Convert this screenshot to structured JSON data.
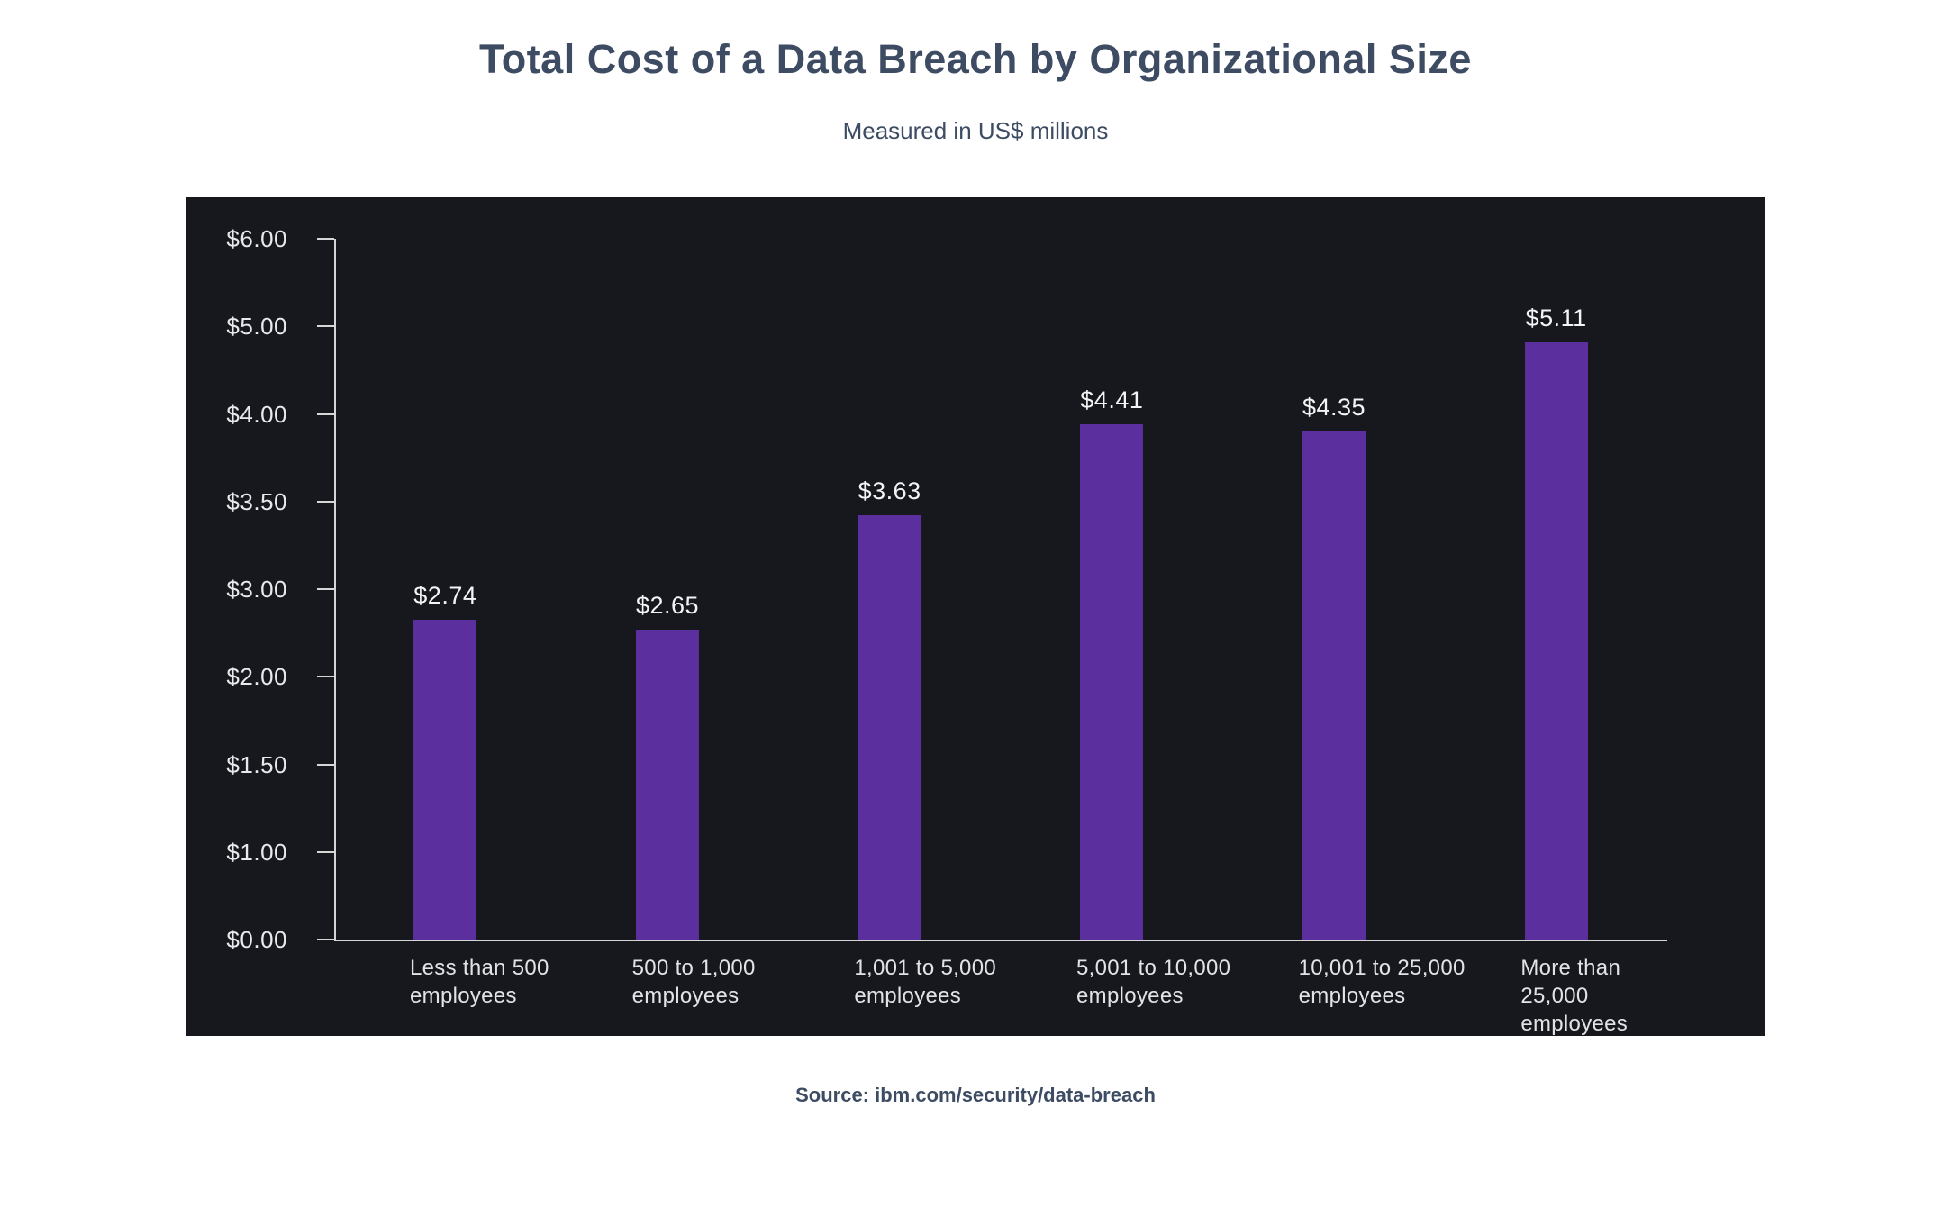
{
  "header": {
    "title": "Total Cost of a Data Breach by Organizational Size",
    "subtitle": "Measured in US$ millions"
  },
  "footer": {
    "source": "Source: ibm.com/security/data-breach"
  },
  "colors": {
    "page_background": "#ffffff",
    "panel_background": "#16181d",
    "bar_fill": "#5b2f9e",
    "heading_text": "#3d4c63",
    "axis_line": "#d6d6d6",
    "tick_label_text": "#e9e9ec",
    "value_label_text": "#f4f4f6",
    "category_label_text": "#e3e3e6"
  },
  "chart_data": {
    "type": "bar",
    "title": "Total Cost of a Data Breach by Organizational Size",
    "subtitle": "Measured in US$ millions",
    "source": "Source: ibm.com/security/data-breach",
    "categories": [
      "Less than 500 employees",
      "500 to 1,000 employees",
      "1,001 to 5,000 employees",
      "5,001 to 10,000 employees",
      "10,001 to 25,000 employees",
      "More than 25,000 employees"
    ],
    "category_lines": [
      [
        "Less than 500",
        "employees"
      ],
      [
        "500 to 1,000",
        "employees"
      ],
      [
        "1,001 to 5,000",
        "employees"
      ],
      [
        "5,001 to 10,000",
        "employees"
      ],
      [
        "10,001 to 25,000",
        "employees"
      ],
      [
        "More than",
        "25,000",
        "employees"
      ]
    ],
    "values": [
      2.74,
      2.65,
      3.63,
      4.41,
      4.35,
      5.11
    ],
    "value_labels": [
      "$2.74",
      "$2.65",
      "$3.63",
      "$4.41",
      "$4.35",
      "$5.11"
    ],
    "y_tick_labels": [
      "$6.00",
      "$5.00",
      "$4.00",
      "$3.50",
      "$3.00",
      "$2.00",
      "$1.50",
      "$1.00",
      "$0.00"
    ],
    "xlabel": "",
    "ylabel": "",
    "ylim": [
      0,
      6
    ],
    "grid": false,
    "legend": false
  }
}
